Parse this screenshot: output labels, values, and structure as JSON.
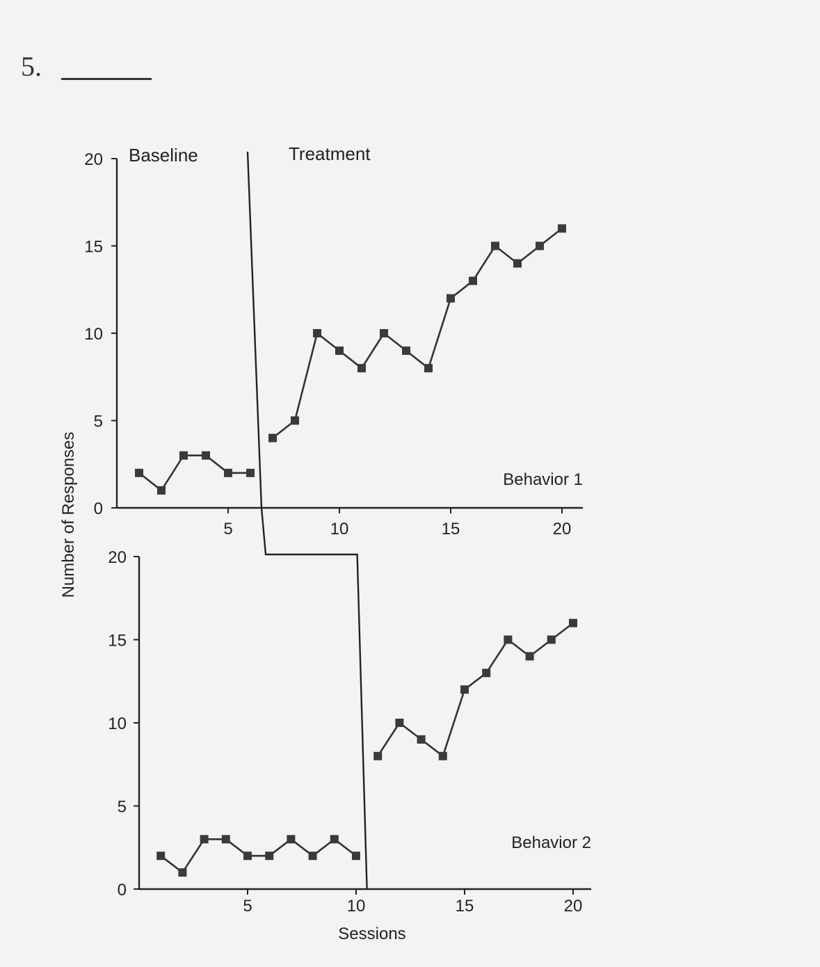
{
  "question_number": "5.",
  "chart_data": {
    "type": "line",
    "design": "multiple-baseline",
    "xlabel": "Sessions",
    "ylabel": "Number of Responses",
    "phases": [
      "Baseline",
      "Treatment"
    ],
    "xlim": [
      0,
      20
    ],
    "ylim": [
      0,
      20
    ],
    "x_ticks": [
      "5",
      "10",
      "15",
      "20"
    ],
    "y_ticks": [
      "0",
      "5",
      "10",
      "15",
      "20"
    ],
    "grid": false,
    "panels": [
      {
        "label": "Behavior 1",
        "phase_change_after_session": 6,
        "baseline": {
          "x": [
            1,
            2,
            3,
            4,
            5,
            6
          ],
          "y": [
            2,
            1,
            3,
            3,
            2,
            2
          ]
        },
        "treatment": {
          "x": [
            7,
            8,
            9,
            10,
            11,
            12,
            13,
            14,
            15,
            16,
            17,
            18,
            19,
            20
          ],
          "y": [
            4,
            5,
            10,
            9,
            8,
            10,
            9,
            8,
            12,
            13,
            15,
            14,
            15,
            16
          ]
        }
      },
      {
        "label": "Behavior 2",
        "phase_change_after_session": 10,
        "baseline": {
          "x": [
            1,
            2,
            3,
            4,
            5,
            6,
            7,
            8,
            9,
            10
          ],
          "y": [
            2,
            1,
            3,
            3,
            2,
            2,
            3,
            2,
            3,
            2
          ]
        },
        "treatment": {
          "x": [
            11,
            12,
            13,
            14,
            15,
            16,
            17,
            18,
            19,
            20
          ],
          "y": [
            8,
            10,
            9,
            8,
            12,
            13,
            15,
            14,
            15,
            16
          ]
        }
      }
    ]
  }
}
